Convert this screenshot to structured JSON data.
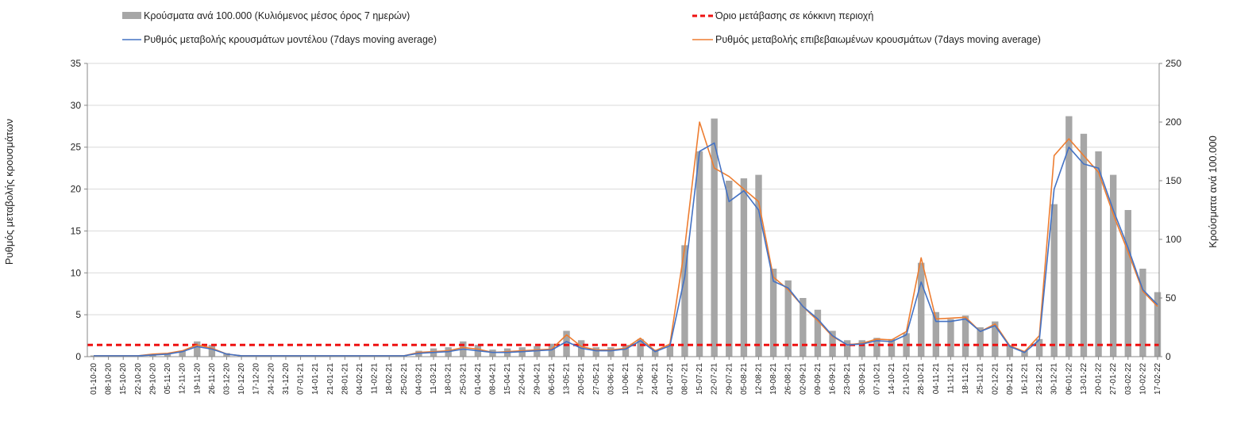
{
  "chart_data": {
    "type": "bar",
    "legend": {
      "bars": "Κρούσματα ανά 100.000 (Κυλιόμενος μέσος όρος 7 ημερών)",
      "threshold": "Όριο μετάβασης σε κόκκινη περιοχή",
      "model": "Ρυθμός μεταβολής κρουσμάτων μοντέλου (7days moving average)",
      "confirmed": "Ρυθμός μεταβολής επιβεβαιωμένων κρουσμάτων (7days moving average)"
    },
    "ylabel_left": "Ρυθμός μεταβολής κρουσμάτων",
    "ylabel_right": "Κρούσματα ανά 100.000",
    "ylim_left": [
      0,
      35
    ],
    "yticks_left": [
      0,
      5,
      10,
      15,
      20,
      25,
      30,
      35
    ],
    "ylim_right": [
      0,
      250
    ],
    "yticks_right": [
      0,
      50,
      100,
      150,
      200,
      250
    ],
    "threshold_value": 1.4,
    "x_start": "01-10-20",
    "x_end": "22-02-22",
    "xtick_labels": [
      "01-10-20",
      "08-10-20",
      "15-10-20",
      "22-10-20",
      "29-10-20",
      "05-11-20",
      "12-11-20",
      "19-11-20",
      "26-11-20",
      "03-12-20",
      "10-12-20",
      "17-12-20",
      "24-12-20",
      "31-12-20",
      "07-01-21",
      "14-01-21",
      "21-01-21",
      "28-01-21",
      "04-02-21",
      "11-02-21",
      "18-02-21",
      "25-02-21",
      "04-03-21",
      "11-03-21",
      "18-03-21",
      "25-03-21",
      "01-04-21",
      "08-04-21",
      "15-04-21",
      "22-04-21",
      "29-04-21",
      "06-05-21",
      "13-05-21",
      "20-05-21",
      "27-05-21",
      "03-06-21",
      "10-06-21",
      "17-06-21",
      "24-06-21",
      "01-07-21",
      "08-07-21",
      "15-07-21",
      "22-07-21",
      "29-07-21",
      "05-08-21",
      "12-08-21",
      "19-08-21",
      "26-08-21",
      "02-09-21",
      "09-09-21",
      "16-09-21",
      "23-09-21",
      "30-09-21",
      "07-10-21",
      "14-10-21",
      "21-10-21",
      "28-10-21",
      "04-11-21",
      "11-11-21",
      "18-11-21",
      "25-11-21",
      "02-12-21",
      "09-12-21",
      "16-12-21",
      "23-12-21",
      "30-12-21",
      "06-01-22",
      "13-01-22",
      "20-01-22",
      "27-01-22",
      "03-02-22",
      "10-02-22",
      "17-02-22"
    ],
    "bars_weekly_per_100k": [
      1,
      1,
      1,
      1,
      1,
      2,
      5,
      13,
      10,
      3,
      1,
      1,
      1,
      1,
      1,
      1,
      1,
      1,
      1,
      1,
      1,
      1,
      5,
      7,
      8,
      13,
      10,
      6,
      7,
      8,
      9,
      11,
      22,
      14,
      8,
      8,
      10,
      15,
      6,
      9,
      95,
      175,
      203,
      150,
      152,
      155,
      75,
      65,
      50,
      40,
      22,
      14,
      14,
      16,
      15,
      20,
      80,
      38,
      32,
      35,
      25,
      30,
      10,
      5,
      15,
      130,
      205,
      190,
      175,
      155,
      125,
      75,
      55
    ],
    "model_rate_weekly": [
      0.1,
      0.1,
      0.1,
      0.1,
      0.2,
      0.3,
      0.6,
      1.2,
      0.9,
      0.3,
      0.1,
      0.1,
      0.1,
      0.1,
      0.1,
      0.1,
      0.1,
      0.1,
      0.1,
      0.1,
      0.1,
      0.1,
      0.4,
      0.5,
      0.6,
      0.9,
      0.7,
      0.5,
      0.5,
      0.6,
      0.7,
      0.8,
      1.8,
      1.0,
      0.7,
      0.7,
      0.9,
      1.9,
      0.6,
      1.3,
      9.5,
      24.5,
      25.5,
      18.5,
      19.8,
      17.5,
      9.0,
      8.2,
      6.0,
      4.5,
      2.5,
      1.4,
      1.5,
      1.9,
      1.8,
      2.6,
      8.9,
      4.2,
      4.2,
      4.5,
      3.0,
      3.7,
      1.2,
      0.5,
      2.0,
      20.0,
      25.0,
      23.0,
      22.5,
      17.5,
      13.0,
      8.0,
      6.2
    ],
    "confirmed_rate_weekly": [
      0.1,
      0.1,
      0.1,
      0.1,
      0.3,
      0.4,
      0.7,
      1.4,
      1.0,
      0.3,
      0.1,
      0.1,
      0.1,
      0.1,
      0.1,
      0.1,
      0.1,
      0.1,
      0.1,
      0.1,
      0.1,
      0.1,
      0.5,
      0.6,
      0.7,
      1.1,
      0.9,
      0.5,
      0.6,
      0.7,
      0.8,
      0.9,
      2.6,
      1.2,
      0.8,
      0.8,
      1.0,
      2.2,
      0.7,
      1.5,
      13.0,
      28.0,
      22.5,
      21.5,
      20.0,
      18.5,
      9.5,
      8.0,
      6.0,
      4.3,
      2.4,
      1.4,
      1.6,
      2.1,
      2.0,
      3.0,
      11.8,
      4.5,
      4.6,
      4.7,
      3.0,
      3.9,
      1.3,
      0.6,
      2.5,
      24.0,
      26.0,
      24.0,
      22.0,
      17.0,
      12.5,
      7.8,
      6.0
    ]
  },
  "colors": {
    "bars": "#a6a6a6",
    "threshold": "#ee1111",
    "model": "#4472c4",
    "confirmed": "#ed7d31",
    "grid": "#d9d9d9"
  }
}
